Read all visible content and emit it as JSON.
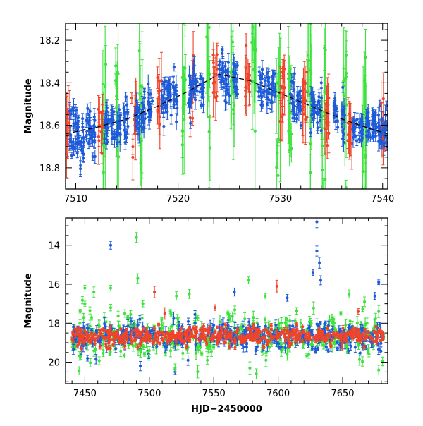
{
  "chart_data": [
    {
      "type": "scatter",
      "title": "",
      "xlabel": "",
      "ylabel": "Magnitude",
      "xlim": [
        7509,
        7540.5
      ],
      "ylim": [
        18.9,
        18.12
      ],
      "y_inverted": true,
      "grid": false,
      "xticks": [
        7510,
        7520,
        7530,
        7540
      ],
      "yticks": [
        18.2,
        18.4,
        18.6,
        18.8
      ],
      "colors": {
        "blue": "#1e5bd8",
        "red": "#f0442a",
        "green": "#3ee23e",
        "model": "#000000"
      },
      "model_curve": {
        "style": "dashed",
        "x": [
          7509,
          7512,
          7515,
          7518,
          7521,
          7524,
          7527,
          7530,
          7533,
          7536,
          7539,
          7540.5
        ],
        "y": [
          18.64,
          18.61,
          18.57,
          18.51,
          18.44,
          18.36,
          18.39,
          18.45,
          18.51,
          18.57,
          18.62,
          18.64
        ]
      },
      "series_clusters": [
        {
          "color": "blue",
          "x": [
            7509.6,
            7510.1,
            7510.6,
            7511.2,
            7511.7,
            7513.0,
            7513.6,
            7514.2,
            7514.9,
            7516.0,
            7516.6,
            7517.3,
            7518.6,
            7519.1,
            7519.7,
            7521.2,
            7521.7,
            7522.3,
            7524.2,
            7524.8,
            7525.6,
            7528.1,
            7528.7,
            7529.3,
            7531.2,
            7531.8,
            7533.2,
            7533.8,
            7535.4,
            7536.1,
            7537.3,
            7537.9,
            7538.6,
            7539.2,
            7539.8,
            7540.3
          ],
          "y_center": [
            18.63,
            18.62,
            18.66,
            18.62,
            18.65,
            18.6,
            18.58,
            18.61,
            18.57,
            18.56,
            18.54,
            18.52,
            18.47,
            18.45,
            18.44,
            18.44,
            18.41,
            18.4,
            18.36,
            18.38,
            18.39,
            18.42,
            18.43,
            18.45,
            18.47,
            18.5,
            18.52,
            18.55,
            18.55,
            18.57,
            18.59,
            18.6,
            18.61,
            18.62,
            18.63,
            18.64
          ],
          "spread": 0.09
        },
        {
          "color": "red",
          "x": [
            7509.2,
            7512.4,
            7515.7,
            7518.2,
            7521.4,
            7523.6,
            7526.8,
            7530.2,
            7532.4,
            7534.6,
            7536.8,
            7540.0
          ],
          "y_center": [
            18.63,
            18.6,
            18.56,
            18.5,
            18.42,
            18.36,
            18.4,
            18.44,
            18.5,
            18.55,
            18.58,
            18.63
          ],
          "spread": 0.12
        },
        {
          "color": "green",
          "x": [
            7512.8,
            7514.0,
            7516.4,
            7520.6,
            7523.0,
            7525.3,
            7527.4,
            7529.8,
            7531.0,
            7532.8,
            7534.2,
            7536.4,
            7538.2
          ],
          "y_center": [
            18.6,
            18.57,
            18.54,
            18.43,
            18.38,
            18.37,
            18.4,
            18.45,
            18.47,
            18.52,
            18.55,
            18.58,
            18.61
          ],
          "spread": 0.3
        }
      ]
    },
    {
      "type": "scatter",
      "title": "",
      "xlabel": "HJD−2450000",
      "ylabel": "Magnitude",
      "xlim": [
        7435,
        7685
      ],
      "ylim": [
        21.1,
        12.6
      ],
      "y_inverted": true,
      "grid": false,
      "xticks": [
        7450,
        7500,
        7550,
        7600,
        7650
      ],
      "yticks": [
        14,
        16,
        18,
        20
      ],
      "colors": {
        "blue": "#1e5bd8",
        "red": "#f0442a",
        "green": "#3ee23e"
      },
      "baseline_mag": 18.65,
      "baseline_x_range": [
        7440,
        7682
      ],
      "outliers": [
        {
          "color": "blue",
          "x": 7470,
          "y": 14.0
        },
        {
          "color": "blue",
          "x": 7630,
          "y": 12.8
        },
        {
          "color": "blue",
          "x": 7630,
          "y": 14.3
        },
        {
          "color": "blue",
          "x": 7632,
          "y": 14.9
        },
        {
          "color": "blue",
          "x": 7627,
          "y": 15.4
        },
        {
          "color": "blue",
          "x": 7633,
          "y": 15.8
        },
        {
          "color": "blue",
          "x": 7678,
          "y": 15.9
        },
        {
          "color": "blue",
          "x": 7675,
          "y": 16.6
        },
        {
          "color": "blue",
          "x": 7566,
          "y": 16.4
        },
        {
          "color": "blue",
          "x": 7607,
          "y": 16.7
        },
        {
          "color": "blue",
          "x": 7452,
          "y": 19.8
        },
        {
          "color": "blue",
          "x": 7493,
          "y": 20.2
        },
        {
          "color": "blue",
          "x": 7520,
          "y": 20.5
        },
        {
          "color": "blue",
          "x": 7530,
          "y": 19.9
        },
        {
          "color": "blue",
          "x": 7474,
          "y": 19.3
        },
        {
          "color": "green",
          "x": 7490,
          "y": 13.6
        },
        {
          "color": "green",
          "x": 7491,
          "y": 15.7
        },
        {
          "color": "green",
          "x": 7450,
          "y": 16.2
        },
        {
          "color": "green",
          "x": 7457,
          "y": 16.4
        },
        {
          "color": "green",
          "x": 7470,
          "y": 16.2
        },
        {
          "color": "green",
          "x": 7577,
          "y": 15.8
        },
        {
          "color": "green",
          "x": 7521,
          "y": 16.6
        },
        {
          "color": "green",
          "x": 7531,
          "y": 16.5
        },
        {
          "color": "green",
          "x": 7450,
          "y": 17.0
        },
        {
          "color": "green",
          "x": 7470,
          "y": 17.2
        },
        {
          "color": "green",
          "x": 7481,
          "y": 17.5
        },
        {
          "color": "green",
          "x": 7495,
          "y": 17.0
        },
        {
          "color": "green",
          "x": 7590,
          "y": 16.6
        },
        {
          "color": "green",
          "x": 7655,
          "y": 16.5
        },
        {
          "color": "green",
          "x": 7667,
          "y": 16.9
        },
        {
          "color": "green",
          "x": 7678,
          "y": 17.4
        },
        {
          "color": "green",
          "x": 7520,
          "y": 20.3
        },
        {
          "color": "green",
          "x": 7545,
          "y": 19.9
        },
        {
          "color": "green",
          "x": 7578,
          "y": 20.3
        },
        {
          "color": "green",
          "x": 7583,
          "y": 20.6
        },
        {
          "color": "green",
          "x": 7607,
          "y": 19.6
        },
        {
          "color": "green",
          "x": 7678,
          "y": 20.4
        },
        {
          "color": "green",
          "x": 7464,
          "y": 19.1
        },
        {
          "color": "green",
          "x": 7500,
          "y": 19.4
        },
        {
          "color": "red",
          "x": 7504,
          "y": 16.4
        },
        {
          "color": "red",
          "x": 7599,
          "y": 16.1
        },
        {
          "color": "red",
          "x": 7662,
          "y": 17.4
        },
        {
          "color": "red",
          "x": 7551,
          "y": 17.2
        },
        {
          "color": "red",
          "x": 7512,
          "y": 17.5
        }
      ]
    }
  ]
}
